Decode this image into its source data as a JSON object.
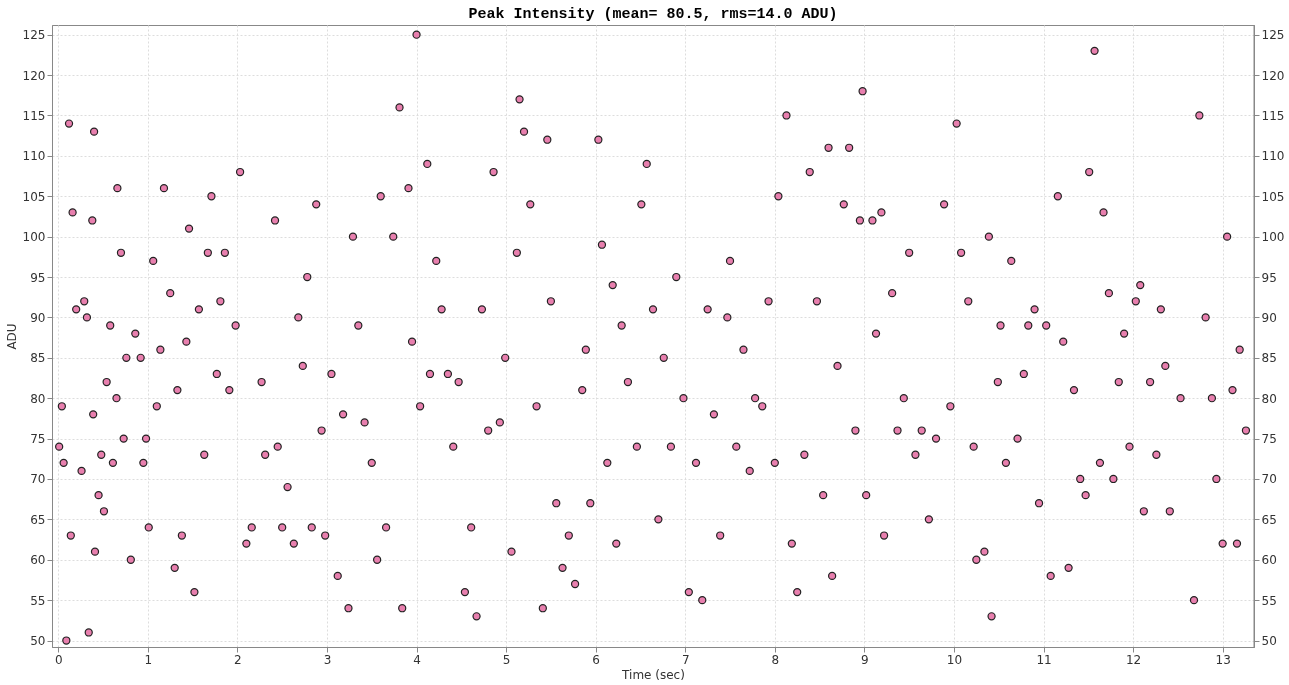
{
  "chart_data": {
    "type": "scatter",
    "title": "Peak Intensity (mean= 80.5, rms=14.0 ADU)",
    "xlabel": "Time (sec)",
    "ylabel": "ADU",
    "x": [
      0.01,
      0.04,
      0.06,
      0.09,
      0.12,
      0.16,
      0.14,
      0.2,
      0.26,
      0.29,
      0.32,
      0.34,
      0.38,
      0.4,
      0.39,
      0.41,
      0.45,
      0.48,
      0.51,
      0.54,
      0.58,
      0.61,
      0.65,
      0.66,
      0.7,
      0.73,
      0.76,
      0.81,
      0.86,
      0.92,
      0.95,
      0.98,
      1.01,
      1.06,
      1.1,
      1.14,
      1.18,
      1.25,
      1.3,
      1.33,
      1.38,
      1.43,
      1.46,
      1.52,
      1.57,
      1.63,
      1.67,
      1.71,
      1.77,
      1.81,
      1.86,
      1.91,
      1.98,
      2.03,
      2.1,
      2.16,
      2.27,
      2.31,
      2.42,
      2.45,
      2.5,
      2.56,
      2.63,
      2.68,
      2.73,
      2.78,
      2.83,
      2.88,
      2.94,
      2.98,
      3.05,
      3.12,
      3.18,
      3.24,
      3.29,
      3.35,
      3.42,
      3.5,
      3.56,
      3.6,
      3.66,
      3.74,
      3.81,
      3.84,
      3.91,
      3.95,
      4.0,
      4.04,
      4.12,
      4.15,
      4.22,
      4.28,
      4.35,
      4.41,
      4.47,
      4.54,
      4.61,
      4.67,
      4.73,
      4.8,
      4.86,
      4.93,
      4.99,
      5.06,
      5.12,
      5.15,
      5.2,
      5.27,
      5.34,
      5.41,
      5.46,
      5.5,
      5.56,
      5.63,
      5.7,
      5.77,
      5.85,
      5.89,
      5.94,
      6.03,
      6.07,
      6.13,
      6.19,
      6.23,
      6.29,
      6.36,
      6.46,
      6.51,
      6.57,
      6.64,
      6.7,
      6.76,
      6.84,
      6.9,
      6.98,
      7.04,
      7.12,
      7.19,
      7.25,
      7.32,
      7.39,
      7.47,
      7.5,
      7.57,
      7.65,
      7.72,
      7.78,
      7.86,
      7.93,
      8.0,
      8.04,
      8.13,
      8.19,
      8.25,
      8.33,
      8.39,
      8.47,
      8.54,
      8.6,
      8.64,
      8.7,
      8.77,
      8.83,
      8.9,
      8.95,
      8.98,
      9.02,
      9.09,
      9.13,
      9.19,
      9.22,
      9.31,
      9.37,
      9.44,
      9.5,
      9.57,
      9.64,
      9.72,
      9.8,
      9.89,
      9.96,
      10.03,
      10.08,
      10.16,
      10.22,
      10.25,
      10.34,
      10.39,
      10.42,
      10.49,
      10.52,
      10.58,
      10.64,
      10.71,
      10.78,
      10.83,
      10.9,
      10.95,
      11.03,
      11.08,
      11.16,
      11.22,
      11.28,
      11.34,
      11.41,
      11.47,
      11.51,
      11.57,
      11.63,
      11.67,
      11.73,
      11.78,
      11.84,
      11.9,
      11.96,
      12.03,
      12.08,
      12.12,
      12.19,
      12.26,
      12.31,
      12.36,
      12.41,
      12.53,
      12.68,
      12.74,
      12.81,
      12.88,
      12.93,
      13.0,
      13.05,
      13.11,
      13.16,
      13.19,
      13.26
    ],
    "values": [
      74,
      79,
      72,
      50,
      114,
      103,
      63,
      91,
      71,
      92,
      90,
      51,
      102,
      113,
      78,
      61,
      68,
      73,
      66,
      82,
      89,
      72,
      80,
      106,
      98,
      75,
      85,
      60,
      88,
      85,
      72,
      75,
      64,
      97,
      79,
      86,
      106,
      93,
      59,
      81,
      63,
      87,
      101,
      56,
      91,
      73,
      98,
      105,
      83,
      92,
      98,
      81,
      89,
      108,
      62,
      64,
      82,
      73,
      102,
      74,
      64,
      69,
      62,
      90,
      84,
      95,
      64,
      104,
      76,
      63,
      83,
      58,
      78,
      54,
      100,
      89,
      77,
      72,
      60,
      105,
      64,
      100,
      116,
      54,
      106,
      87,
      125,
      79,
      109,
      83,
      97,
      91,
      83,
      74,
      82,
      56,
      64,
      53,
      91,
      76,
      108,
      77,
      85,
      61,
      98,
      117,
      113,
      104,
      79,
      54,
      112,
      92,
      67,
      59,
      63,
      57,
      81,
      86,
      67,
      112,
      99,
      72,
      94,
      62,
      89,
      82,
      74,
      104,
      109,
      91,
      65,
      85,
      74,
      95,
      80,
      56,
      72,
      55,
      91,
      78,
      63,
      90,
      97,
      74,
      86,
      71,
      80,
      79,
      92,
      72,
      105,
      115,
      62,
      56,
      73,
      108,
      92,
      68,
      111,
      58,
      84,
      104,
      111,
      76,
      102,
      118,
      68,
      102,
      88,
      103,
      63,
      93,
      76,
      80,
      98,
      73,
      76,
      65,
      75,
      104,
      79,
      114,
      98,
      92,
      74,
      60,
      61,
      100,
      53,
      82,
      89,
      72,
      97,
      75,
      83,
      89,
      91,
      67,
      89,
      58,
      105,
      87,
      59,
      81,
      70,
      68,
      108,
      123,
      72,
      103,
      93,
      70,
      82,
      88,
      74,
      92,
      94,
      66,
      82,
      73,
      91,
      84,
      66,
      80,
      55,
      115,
      90,
      80,
      70,
      62,
      100,
      81,
      62,
      86,
      76
    ],
    "color": "#e87fae",
    "marker": "circle",
    "grid": true,
    "xlim": [
      -0.07,
      13.35
    ],
    "xticks": [
      0,
      1,
      2,
      3,
      4,
      5,
      6,
      7,
      8,
      9,
      10,
      11,
      12,
      13
    ],
    "ylim": [
      49.2,
      126.2
    ],
    "yticks": [
      50,
      55,
      60,
      65,
      70,
      75,
      80,
      85,
      90,
      95,
      100,
      105,
      110,
      115,
      120,
      125
    ],
    "y2lim": [
      49.2,
      126.2
    ],
    "y2ticks": [
      50,
      55,
      60,
      65,
      70,
      75,
      80,
      85,
      90,
      95,
      100,
      105,
      110,
      115,
      120,
      125
    ]
  }
}
